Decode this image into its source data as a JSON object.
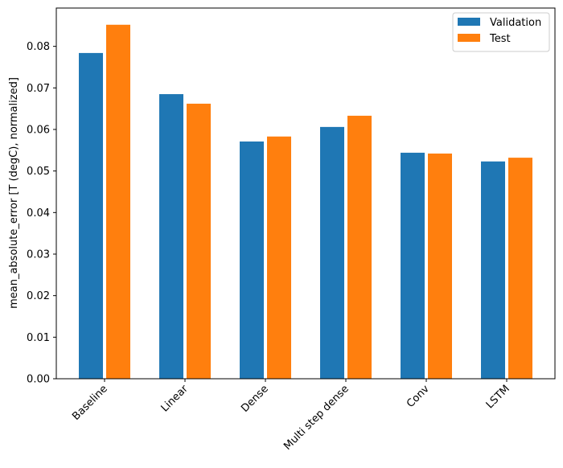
{
  "chart_data": {
    "type": "bar",
    "title": "",
    "xlabel": "",
    "ylabel": "mean_absolute_error [T (degC), normalized]",
    "categories": [
      "Baseline",
      "Linear",
      "Dense",
      "Multi step dense",
      "Conv",
      "LSTM"
    ],
    "series": [
      {
        "name": "Validation",
        "color": "#1f77b4",
        "values": [
          0.0784,
          0.0685,
          0.0571,
          0.0606,
          0.0544,
          0.0523
        ]
      },
      {
        "name": "Test",
        "color": "#ff7f0e",
        "values": [
          0.0852,
          0.0662,
          0.0583,
          0.0633,
          0.0542,
          0.0532
        ]
      }
    ],
    "ylim": [
      0,
      0.0893
    ],
    "yticks": [
      "0.00",
      "0.01",
      "0.02",
      "0.03",
      "0.04",
      "0.05",
      "0.06",
      "0.07",
      "0.08"
    ],
    "grid": false,
    "legend": "top-right",
    "xtick_rotation": 45
  }
}
